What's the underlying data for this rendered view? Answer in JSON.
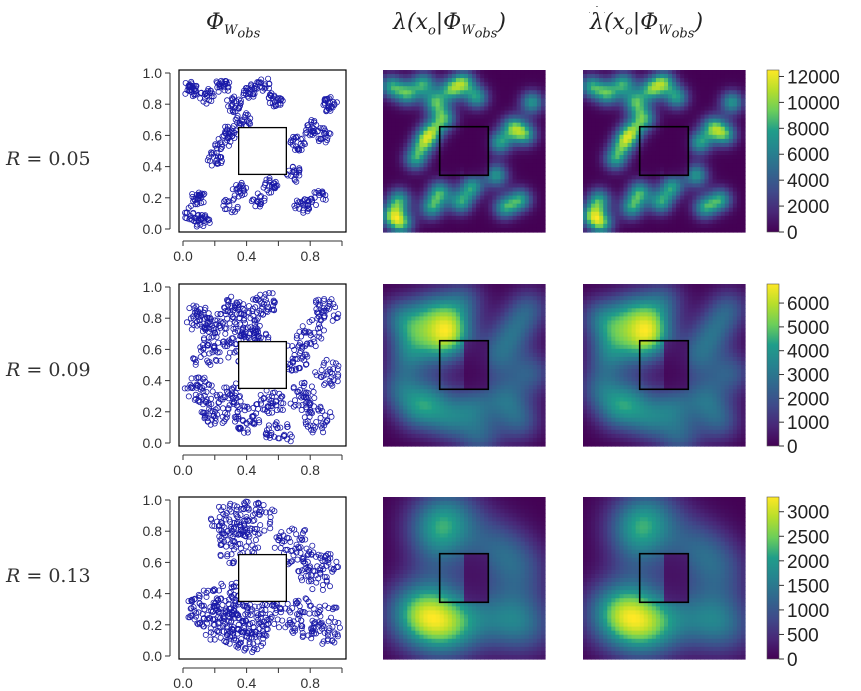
{
  "column_headers": {
    "col1": {
      "main": "Φ",
      "sub": "W",
      "subsub": "obs"
    },
    "col2": {
      "pre": "λ(x",
      "sub": "o",
      "mid": "|Φ",
      "sub2": "W",
      "subsub": "obs",
      "post": ")"
    },
    "col3": {
      "pre": "λ",
      "paren": "(x",
      "sub": "o",
      "mid": "|Φ",
      "sub2": "W",
      "subsub": "obs",
      "post": ")"
    }
  },
  "rows": [
    {
      "label_var": "R",
      "label_eq": " = ",
      "label_val": "0.05"
    },
    {
      "label_var": "R",
      "label_eq": " = ",
      "label_val": "0.09"
    },
    {
      "label_var": "R",
      "label_eq": " = ",
      "label_val": "0.13"
    }
  ],
  "chart_data": [
    {
      "type": "scatter",
      "title": "Φ_{W_obs}",
      "row_label": "R = 0.05",
      "xlim": [
        0,
        1
      ],
      "ylim": [
        0,
        1
      ],
      "x_ticks": [
        "0.0",
        "0.4",
        "0.8"
      ],
      "y_ticks": [
        "0.0",
        "0.2",
        "0.4",
        "0.6",
        "0.8",
        "1.0"
      ],
      "hole": {
        "x0": 0.35,
        "x1": 0.65,
        "y0": 0.35,
        "y1": 0.65
      },
      "clusters": [
        [
          0.05,
          0.9
        ],
        [
          0.15,
          0.85
        ],
        [
          0.25,
          0.92
        ],
        [
          0.32,
          0.8
        ],
        [
          0.42,
          0.88
        ],
        [
          0.5,
          0.93
        ],
        [
          0.58,
          0.83
        ],
        [
          0.1,
          0.2
        ],
        [
          0.05,
          0.1
        ],
        [
          0.12,
          0.05
        ],
        [
          0.3,
          0.15
        ],
        [
          0.35,
          0.25
        ],
        [
          0.48,
          0.18
        ],
        [
          0.55,
          0.28
        ],
        [
          0.75,
          0.15
        ],
        [
          0.85,
          0.2
        ],
        [
          0.8,
          0.65
        ],
        [
          0.88,
          0.6
        ],
        [
          0.92,
          0.8
        ],
        [
          0.25,
          0.55
        ],
        [
          0.3,
          0.62
        ],
        [
          0.38,
          0.7
        ],
        [
          0.2,
          0.45
        ],
        [
          0.7,
          0.35
        ],
        [
          0.72,
          0.55
        ]
      ],
      "cluster_radius": 0.05,
      "n_points": 560,
      "marker": "open circle",
      "color": "#1a1aa8"
    },
    {
      "type": "heatmap",
      "title": "λ(x_o|Φ_{W_obs})",
      "row_label": "R = 0.05",
      "xlim": [
        0,
        1
      ],
      "ylim": [
        0,
        1
      ],
      "hole": {
        "x0": 0.35,
        "x1": 0.65,
        "y0": 0.35,
        "y1": 0.65
      },
      "bandwidth": 0.05,
      "vmax": 12000
    },
    {
      "type": "heatmap",
      "title": "λ̂(x_o|Φ_{W_obs})",
      "row_label": "R = 0.05",
      "xlim": [
        0,
        1
      ],
      "ylim": [
        0,
        1
      ],
      "hole": {
        "x0": 0.35,
        "x1": 0.65,
        "y0": 0.35,
        "y1": 0.65
      },
      "bandwidth": 0.05,
      "vmax": 12000,
      "colorbar": {
        "min": 0,
        "max": 12500,
        "ticks": [
          "0",
          "2000",
          "4000",
          "6000",
          "8000",
          "10000",
          "12000"
        ],
        "tick_values": [
          0,
          2000,
          4000,
          6000,
          8000,
          10000,
          12000
        ]
      }
    },
    {
      "type": "scatter",
      "title": "Φ_{W_obs}",
      "row_label": "R = 0.09",
      "xlim": [
        0,
        1
      ],
      "ylim": [
        0,
        1
      ],
      "x_ticks": [
        "0.0",
        "0.4",
        "0.8"
      ],
      "y_ticks": [
        "0.0",
        "0.2",
        "0.4",
        "0.6",
        "0.8",
        "1.0"
      ],
      "hole": {
        "x0": 0.35,
        "x1": 0.65,
        "y0": 0.35,
        "y1": 0.65
      },
      "clusters": [
        [
          0.1,
          0.8
        ],
        [
          0.2,
          0.7
        ],
        [
          0.3,
          0.85
        ],
        [
          0.4,
          0.75
        ],
        [
          0.5,
          0.9
        ],
        [
          0.35,
          0.6
        ],
        [
          0.45,
          0.68
        ],
        [
          0.1,
          0.35
        ],
        [
          0.2,
          0.2
        ],
        [
          0.3,
          0.3
        ],
        [
          0.4,
          0.15
        ],
        [
          0.55,
          0.25
        ],
        [
          0.15,
          0.55
        ],
        [
          0.75,
          0.3
        ],
        [
          0.85,
          0.15
        ],
        [
          0.8,
          0.7
        ],
        [
          0.9,
          0.85
        ],
        [
          0.7,
          0.55
        ],
        [
          0.92,
          0.45
        ],
        [
          0.6,
          0.05
        ]
      ],
      "cluster_radius": 0.09,
      "n_points": 720,
      "marker": "open circle",
      "color": "#1a1aa8"
    },
    {
      "type": "heatmap",
      "title": "λ(x_o|Φ_{W_obs})",
      "row_label": "R = 0.09",
      "xlim": [
        0,
        1
      ],
      "ylim": [
        0,
        1
      ],
      "hole": {
        "x0": 0.35,
        "x1": 0.65,
        "y0": 0.35,
        "y1": 0.65
      },
      "bandwidth": 0.09,
      "vmax": 6500
    },
    {
      "type": "heatmap",
      "title": "λ̂(x_o|Φ_{W_obs})",
      "row_label": "R = 0.09",
      "xlim": [
        0,
        1
      ],
      "ylim": [
        0,
        1
      ],
      "hole": {
        "x0": 0.35,
        "x1": 0.65,
        "y0": 0.35,
        "y1": 0.65
      },
      "bandwidth": 0.09,
      "vmax": 6500,
      "colorbar": {
        "min": 0,
        "max": 6800,
        "ticks": [
          "0",
          "1000",
          "2000",
          "3000",
          "4000",
          "5000",
          "6000"
        ],
        "tick_values": [
          0,
          1000,
          2000,
          3000,
          4000,
          5000,
          6000
        ]
      }
    },
    {
      "type": "scatter",
      "title": "Φ_{W_obs}",
      "row_label": "R = 0.13",
      "xlim": [
        0,
        1
      ],
      "ylim": [
        0,
        1
      ],
      "x_ticks": [
        "0.0",
        "0.4",
        "0.8"
      ],
      "y_ticks": [
        "0.0",
        "0.2",
        "0.4",
        "0.6",
        "0.8",
        "1.0"
      ],
      "hole": {
        "x0": 0.35,
        "x1": 0.65,
        "y0": 0.35,
        "y1": 0.65
      },
      "clusters": [
        [
          0.3,
          0.85
        ],
        [
          0.45,
          0.9
        ],
        [
          0.35,
          0.7
        ],
        [
          0.25,
          0.2
        ],
        [
          0.4,
          0.15
        ],
        [
          0.3,
          0.35
        ],
        [
          0.15,
          0.3
        ],
        [
          0.5,
          0.25
        ],
        [
          0.7,
          0.7
        ],
        [
          0.85,
          0.55
        ],
        [
          0.75,
          0.25
        ],
        [
          0.9,
          0.2
        ]
      ],
      "cluster_radius": 0.13,
      "n_points": 700,
      "marker": "open circle",
      "color": "#1a1aa8"
    },
    {
      "type": "heatmap",
      "title": "λ(x_o|Φ_{W_obs})",
      "row_label": "R = 0.13",
      "xlim": [
        0,
        1
      ],
      "ylim": [
        0,
        1
      ],
      "hole": {
        "x0": 0.35,
        "x1": 0.65,
        "y0": 0.35,
        "y1": 0.65
      },
      "bandwidth": 0.13,
      "vmax": 3200
    },
    {
      "type": "heatmap",
      "title": "λ̂(x_o|Φ_{W_obs})",
      "row_label": "R = 0.13",
      "xlim": [
        0,
        1
      ],
      "ylim": [
        0,
        1
      ],
      "hole": {
        "x0": 0.35,
        "x1": 0.65,
        "y0": 0.35,
        "y1": 0.65
      },
      "bandwidth": 0.13,
      "vmax": 3200,
      "colorbar": {
        "min": 0,
        "max": 3300,
        "ticks": [
          "0",
          "500",
          "1000",
          "1500",
          "2000",
          "2500",
          "3000"
        ],
        "tick_values": [
          0,
          500,
          1000,
          1500,
          2000,
          2500,
          3000
        ]
      }
    }
  ],
  "colors": {
    "point": "#1a1aa8",
    "frame": "#000000",
    "viridis": [
      "#440154",
      "#482777",
      "#3f4a8a",
      "#31678e",
      "#26838f",
      "#1f9d8a",
      "#6cce5a",
      "#b6de2b",
      "#fee825"
    ]
  }
}
